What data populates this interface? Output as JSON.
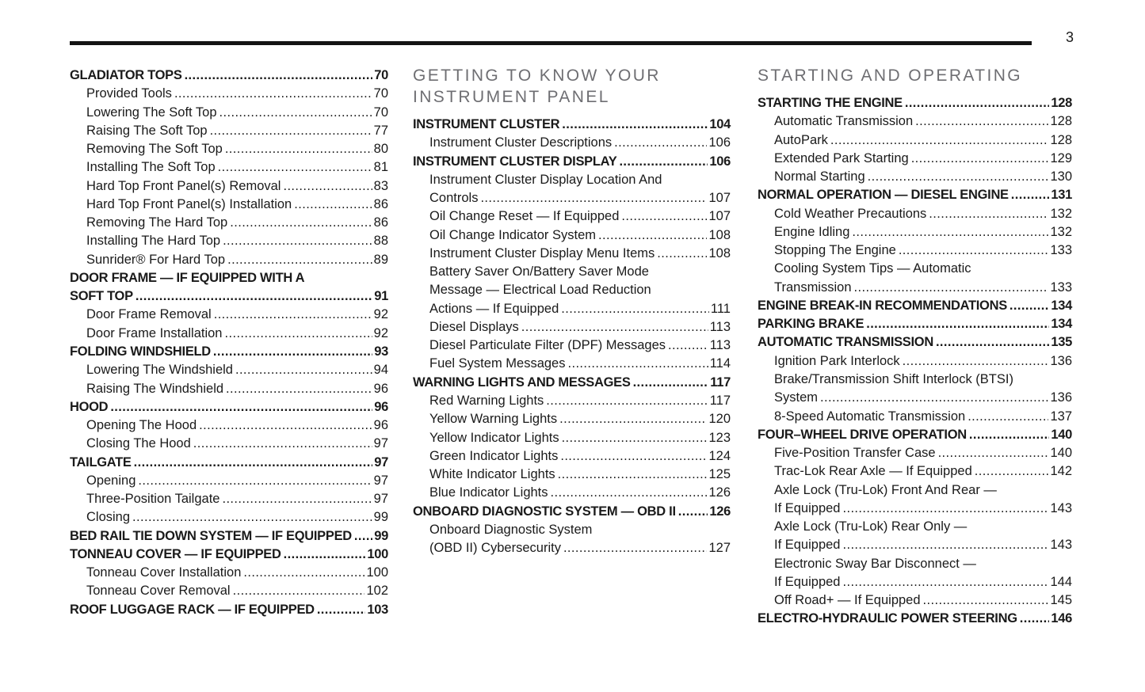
{
  "page": {
    "number": "3"
  },
  "colors": {
    "text": "#1a1a1a",
    "header_gray": "#6e6e72",
    "rule": "#141414",
    "page_bg": "#ffffff"
  },
  "columns": [
    {
      "header_lines": [],
      "entries": [
        {
          "text": "GLADIATOR TOPS",
          "page": "70",
          "bold": true
        },
        {
          "text": "Provided Tools",
          "page": "70",
          "indent": true
        },
        {
          "text": "Lowering The Soft Top",
          "page": "70",
          "indent": true
        },
        {
          "text": "Raising The Soft Top",
          "page": "77",
          "indent": true
        },
        {
          "text": "Removing The Soft Top",
          "page": "80",
          "indent": true
        },
        {
          "text": "Installing The Soft Top",
          "page": "81",
          "indent": true
        },
        {
          "text": "Hard Top Front Panel(s) Removal",
          "page": "83",
          "indent": true
        },
        {
          "text": "Hard Top Front Panel(s) Installation",
          "page": "86",
          "indent": true
        },
        {
          "text": "Removing The Hard Top",
          "page": "86",
          "indent": true
        },
        {
          "text": "Installing The Hard Top",
          "page": "88",
          "indent": true
        },
        {
          "text": "Sunrider® For Hard Top",
          "page": "89",
          "indent": true
        },
        {
          "text": "DOOR FRAME — IF EQUIPPED WITH A",
          "page": null,
          "bold": true
        },
        {
          "text": "SOFT TOP",
          "page": "91",
          "bold": true
        },
        {
          "text": "Door Frame Removal",
          "page": "92",
          "indent": true
        },
        {
          "text": "Door Frame Installation",
          "page": "92",
          "indent": true
        },
        {
          "text": "FOLDING WINDSHIELD",
          "page": "93",
          "bold": true
        },
        {
          "text": "Lowering The Windshield",
          "page": "94",
          "indent": true
        },
        {
          "text": "Raising The Windshield",
          "page": "96",
          "indent": true
        },
        {
          "text": "HOOD",
          "page": "96",
          "bold": true
        },
        {
          "text": "Opening The Hood",
          "page": "96",
          "indent": true
        },
        {
          "text": "Closing The Hood",
          "page": "97",
          "indent": true
        },
        {
          "text": "TAILGATE",
          "page": "97",
          "bold": true
        },
        {
          "text": "Opening",
          "page": "97",
          "indent": true
        },
        {
          "text": "Three-Position Tailgate",
          "page": "97",
          "indent": true
        },
        {
          "text": "Closing",
          "page": "99",
          "indent": true
        },
        {
          "text": "BED RAIL TIE DOWN SYSTEM — IF EQUIPPED",
          "page": "99",
          "bold": true
        },
        {
          "text": "TONNEAU COVER — IF EQUIPPED",
          "page": "100",
          "bold": true
        },
        {
          "text": "Tonneau Cover Installation",
          "page": "100",
          "indent": true
        },
        {
          "text": "Tonneau Cover Removal",
          "page": "102",
          "indent": true
        },
        {
          "text": "ROOF LUGGAGE RACK — IF EQUIPPED",
          "page": "103",
          "bold": true
        }
      ]
    },
    {
      "header_lines": [
        "GETTING TO KNOW YOUR",
        "INSTRUMENT PANEL"
      ],
      "entries": [
        {
          "text": "INSTRUMENT CLUSTER",
          "page": "104",
          "bold": true
        },
        {
          "text": "Instrument Cluster Descriptions",
          "page": "106",
          "indent": true
        },
        {
          "text": "INSTRUMENT CLUSTER DISPLAY",
          "page": "106",
          "bold": true
        },
        {
          "text": "Instrument Cluster Display Location And",
          "page": null,
          "indent": true
        },
        {
          "text": "Controls",
          "page": "107",
          "indent": true
        },
        {
          "text": "Oil Change Reset — If Equipped",
          "page": "107",
          "indent": true
        },
        {
          "text": "Oil Change Indicator System",
          "page": "108",
          "indent": true
        },
        {
          "text": "Instrument Cluster Display Menu Items",
          "page": "108",
          "indent": true
        },
        {
          "text": "Battery Saver On/Battery Saver Mode",
          "page": null,
          "indent": true
        },
        {
          "text": "Message — Electrical Load Reduction",
          "page": null,
          "indent": true
        },
        {
          "text": "Actions — If Equipped",
          "page": "111",
          "indent": true
        },
        {
          "text": "Diesel Displays",
          "page": "113",
          "indent": true
        },
        {
          "text": "Diesel Particulate Filter (DPF) Messages",
          "page": "113",
          "indent": true
        },
        {
          "text": "Fuel System Messages",
          "page": "114",
          "indent": true
        },
        {
          "text": "WARNING LIGHTS AND MESSAGES",
          "page": "117",
          "bold": true
        },
        {
          "text": "Red Warning Lights",
          "page": "117",
          "indent": true
        },
        {
          "text": "Yellow Warning Lights",
          "page": "120",
          "indent": true
        },
        {
          "text": "Yellow Indicator Lights",
          "page": "123",
          "indent": true
        },
        {
          "text": "Green Indicator Lights",
          "page": "124",
          "indent": true
        },
        {
          "text": "White Indicator Lights",
          "page": "125",
          "indent": true
        },
        {
          "text": "Blue Indicator Lights",
          "page": "126",
          "indent": true
        },
        {
          "text": "ONBOARD DIAGNOSTIC SYSTEM — OBD II",
          "page": "126",
          "bold": true
        },
        {
          "text": "Onboard Diagnostic System",
          "page": null,
          "indent": true
        },
        {
          "text": "(OBD II) Cybersecurity",
          "page": "127",
          "indent": true
        }
      ]
    },
    {
      "header_lines": [
        "STARTING AND OPERATING"
      ],
      "entries": [
        {
          "text": "STARTING THE ENGINE",
          "page": "128",
          "bold": true
        },
        {
          "text": "Automatic Transmission",
          "page": "128",
          "indent": true
        },
        {
          "text": "AutoPark",
          "page": "128",
          "indent": true
        },
        {
          "text": "Extended Park Starting",
          "page": "129",
          "indent": true
        },
        {
          "text": "Normal Starting",
          "page": "130",
          "indent": true
        },
        {
          "text": "NORMAL OPERATION — DIESEL ENGINE",
          "page": "131",
          "bold": true
        },
        {
          "text": "Cold Weather Precautions",
          "page": "132",
          "indent": true
        },
        {
          "text": "Engine Idling",
          "page": "132",
          "indent": true
        },
        {
          "text": "Stopping The Engine",
          "page": "133",
          "indent": true
        },
        {
          "text": "Cooling System Tips — Automatic",
          "page": null,
          "indent": true
        },
        {
          "text": "Transmission",
          "page": "133",
          "indent": true
        },
        {
          "text": "ENGINE BREAK-IN RECOMMENDATIONS",
          "page": "134",
          "bold": true
        },
        {
          "text": "PARKING BRAKE",
          "page": "134",
          "bold": true
        },
        {
          "text": "AUTOMATIC TRANSMISSION",
          "page": "135",
          "bold": true
        },
        {
          "text": "Ignition Park Interlock",
          "page": "136",
          "indent": true
        },
        {
          "text": "Brake/Transmission Shift Interlock (BTSI)",
          "page": null,
          "indent": true
        },
        {
          "text": "System",
          "page": "136",
          "indent": true
        },
        {
          "text": "8-Speed Automatic Transmission",
          "page": "137",
          "indent": true
        },
        {
          "text": "FOUR–WHEEL DRIVE OPERATION",
          "page": "140",
          "bold": true
        },
        {
          "text": "Five-Position Transfer Case",
          "page": "140",
          "indent": true
        },
        {
          "text": "Trac-Lok Rear Axle — If Equipped",
          "page": "142",
          "indent": true
        },
        {
          "text": "Axle Lock (Tru-Lok) Front And Rear —",
          "page": null,
          "indent": true
        },
        {
          "text": "If Equipped",
          "page": "143",
          "indent": true
        },
        {
          "text": "Axle Lock (Tru-Lok) Rear Only —",
          "page": null,
          "indent": true
        },
        {
          "text": "If Equipped",
          "page": "143",
          "indent": true
        },
        {
          "text": "Electronic Sway Bar Disconnect —",
          "page": null,
          "indent": true
        },
        {
          "text": "If Equipped",
          "page": "144",
          "indent": true
        },
        {
          "text": "Off Road+ — If Equipped",
          "page": "145",
          "indent": true
        },
        {
          "text": "ELECTRO-HYDRAULIC POWER STEERING",
          "page": "146",
          "bold": true
        }
      ]
    }
  ]
}
